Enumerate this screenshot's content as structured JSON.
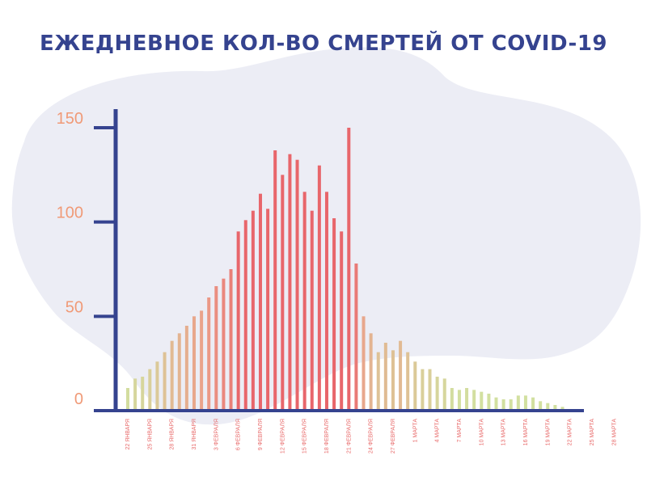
{
  "chart_data": {
    "type": "bar",
    "title": "ЕЖЕДНЕВНОЕ КОЛ-ВО СМЕРТЕЙ ОТ COVID-19",
    "xlabel": "",
    "ylabel": "",
    "ylim": [
      0,
      160
    ],
    "yticks": [
      0,
      50,
      100,
      150
    ],
    "x_tick_labels": [
      "22 ЯНВАРЯ",
      "25 ЯНВАРЯ",
      "28 ЯНВАРЯ",
      "31 ЯНВАРЯ",
      "3 ФЕВРАЛЯ",
      "6 ФЕВРАЛЯ",
      "9 ФЕВРАЛЯ",
      "12 ФЕВРАЛЯ",
      "15 ФЕВРАЛЯ",
      "18 ФЕВРАЛЯ",
      "21 ФЕВРАЛЯ",
      "24 ФЕВРАЛЯ",
      "27 ФЕВРАЛЯ",
      "1 МАРТА",
      "4 МАРТА",
      "7 МАРТА",
      "10 МАРТА",
      "13 МАРТА",
      "16 МАРТА",
      "19 МАРТА",
      "22 МАРТА",
      "25 МАРТА",
      "28 МАРТА"
    ],
    "values": [
      12,
      17,
      18,
      22,
      26,
      31,
      37,
      41,
      45,
      50,
      53,
      60,
      66,
      70,
      75,
      95,
      101,
      106,
      115,
      107,
      138,
      125,
      136,
      133,
      116,
      106,
      130,
      116,
      102,
      95,
      150,
      78,
      50,
      41,
      31,
      36,
      32,
      37,
      31,
      26,
      22,
      22,
      18,
      17,
      12,
      11,
      12,
      11,
      10,
      9,
      7,
      6,
      6,
      8,
      8,
      7,
      5,
      4,
      3,
      2
    ],
    "grid": false,
    "legend": "none",
    "colors": {
      "axis": "#35438f",
      "title": "#35438f",
      "ytick": "#f09a77",
      "xtick": "#e86b6b",
      "bar_high": "#e8666b",
      "bar_mid": "#eba08a",
      "bar_low": "#d2e0a0",
      "blob": "#ecedf5"
    }
  }
}
